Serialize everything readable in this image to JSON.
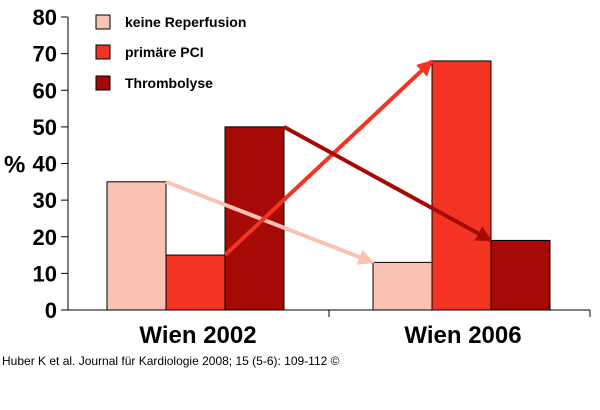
{
  "chart_data": {
    "type": "bar",
    "title": "",
    "ylabel": "%",
    "xlabel": "",
    "ylim": [
      0,
      80
    ],
    "yticks": [
      0,
      10,
      20,
      30,
      40,
      50,
      60,
      70,
      80
    ],
    "categories": [
      "Wien 2002",
      "Wien 2006"
    ],
    "series": [
      {
        "name": "keine Reperfusion",
        "values": [
          35,
          13
        ],
        "color": "#f9c2b2"
      },
      {
        "name": "primäre PCI",
        "values": [
          15,
          68
        ],
        "color": "#f33422"
      },
      {
        "name": "Thrombolyse",
        "values": [
          50,
          19
        ],
        "color": "#a50a06"
      }
    ],
    "legend": "top-left",
    "grid": false,
    "annotations": "arrows connect each series from Wien 2002 to Wien 2006"
  },
  "credit": "Huber K et al. Journal für Kardiologie 2008; 15 (5-6): 109-112 ©"
}
